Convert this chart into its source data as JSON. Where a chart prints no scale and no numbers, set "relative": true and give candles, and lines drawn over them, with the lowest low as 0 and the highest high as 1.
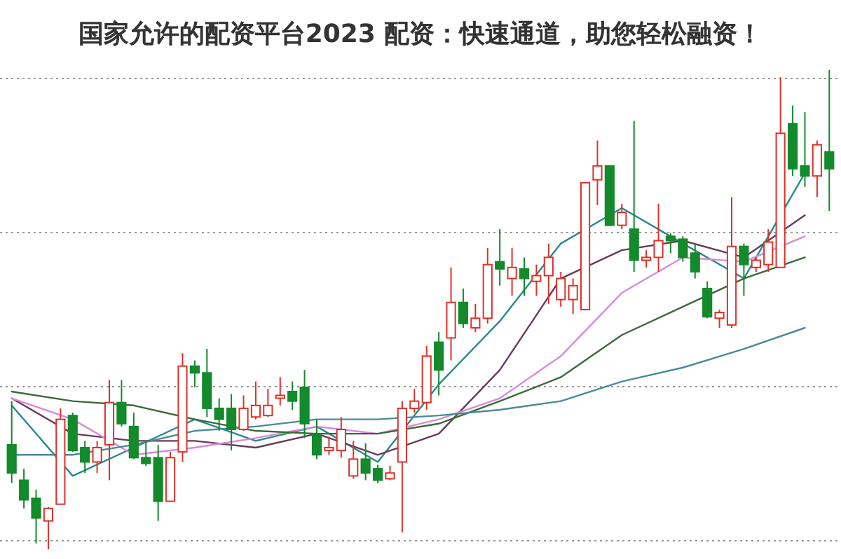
{
  "chart_data": {
    "type": "candlestick",
    "title": "国家允许的配资平台2023 配资：快速通道，助您轻松融资！",
    "relative": true,
    "grid": "y",
    "categories": [
      null,
      null,
      null,
      null,
      null,
      null,
      null,
      null,
      null,
      null,
      null,
      null,
      null,
      null,
      null,
      null,
      null,
      null,
      null,
      null,
      null,
      null,
      null,
      null,
      null,
      null,
      null,
      null,
      null,
      null,
      null,
      null,
      null,
      null,
      null,
      null,
      null,
      null,
      null,
      null,
      null,
      null,
      null,
      null,
      null,
      null,
      null,
      null,
      null,
      null,
      null,
      null,
      null,
      null,
      null,
      null,
      null,
      null,
      null,
      null,
      null,
      null,
      null,
      null,
      null,
      null,
      null,
      null
    ],
    "ohlc": [
      [
        0.218,
        0.309,
        0.138,
        0.159
      ],
      [
        0.144,
        0.168,
        0.085,
        0.103
      ],
      [
        0.106,
        0.124,
        0.012,
        0.065
      ],
      [
        0.059,
        0.088,
        0,
        0.085
      ],
      [
        0.094,
        0.294,
        0.094,
        0.271
      ],
      [
        0.279,
        0.285,
        0.203,
        0.206
      ],
      [
        0.212,
        0.226,
        0.159,
        0.182
      ],
      [
        0.182,
        0.226,
        0.159,
        0.212
      ],
      [
        0.218,
        0.353,
        0.144,
        0.306
      ],
      [
        0.306,
        0.353,
        0.256,
        0.262
      ],
      [
        0.256,
        0.285,
        0.188,
        0.191
      ],
      [
        0.191,
        0.226,
        0.174,
        0.179
      ],
      [
        0.191,
        0.218,
        0.059,
        0.1
      ],
      [
        0.1,
        0.203,
        0.1,
        0.191
      ],
      [
        0.203,
        0.409,
        0.182,
        0.382
      ],
      [
        0.382,
        0.394,
        0.338,
        0.368
      ],
      [
        0.368,
        0.418,
        0.276,
        0.294
      ],
      [
        0.294,
        0.315,
        0.247,
        0.271
      ],
      [
        0.294,
        0.324,
        0.206,
        0.25
      ],
      [
        0.25,
        0.321,
        0.247,
        0.294
      ],
      [
        0.276,
        0.35,
        0.271,
        0.3
      ],
      [
        0.279,
        0.335,
        0.276,
        0.3
      ],
      [
        0.315,
        0.359,
        0.3,
        0.321
      ],
      [
        0.329,
        0.35,
        0.291,
        0.309
      ],
      [
        0.338,
        0.374,
        0.232,
        0.262
      ],
      [
        0.241,
        0.271,
        0.188,
        0.197
      ],
      [
        0.206,
        0.235,
        0.197,
        0.212
      ],
      [
        0.206,
        0.276,
        0.191,
        0.25
      ],
      [
        0.153,
        0.226,
        0.147,
        0.188
      ],
      [
        0.188,
        0.221,
        0.144,
        0.159
      ],
      [
        0.168,
        0.176,
        0.138,
        0.144
      ],
      [
        0.147,
        0.174,
        0.144,
        0.159
      ],
      [
        0.182,
        0.309,
        0.035,
        0.294
      ],
      [
        0.294,
        0.335,
        0.285,
        0.309
      ],
      [
        0.306,
        0.424,
        0.291,
        0.403
      ],
      [
        0.432,
        0.453,
        0.321,
        0.374
      ],
      [
        0.441,
        0.588,
        0.394,
        0.515
      ],
      [
        0.515,
        0.544,
        0.462,
        0.471
      ],
      [
        0.462,
        0.512,
        0.453,
        0.482
      ],
      [
        0.482,
        0.629,
        0.471,
        0.594
      ],
      [
        0.6,
        0.668,
        0.55,
        0.585
      ],
      [
        0.565,
        0.629,
        0.529,
        0.588
      ],
      [
        0.585,
        0.609,
        0.529,
        0.565
      ],
      [
        0.559,
        0.594,
        0.529,
        0.571
      ],
      [
        0.571,
        0.638,
        0.512,
        0.609
      ],
      [
        0.521,
        0.579,
        0.506,
        0.565
      ],
      [
        0.521,
        0.565,
        0.491,
        0.55
      ],
      [
        0.5,
        0.765,
        0.5,
        0.765
      ],
      [
        0.771,
        0.853,
        0.718,
        0.8
      ],
      [
        0.8,
        0.8,
        0.676,
        0.676
      ],
      [
        0.676,
        0.721,
        0.668,
        0.703
      ],
      [
        0.668,
        0.894,
        0.579,
        0.603
      ],
      [
        0.603,
        0.624,
        0.588,
        0.609
      ],
      [
        0.609,
        0.721,
        0.579,
        0.644
      ],
      [
        0.653,
        0.659,
        0.618,
        0.644
      ],
      [
        0.647,
        0.653,
        0.6,
        0.609
      ],
      [
        0.618,
        0.638,
        0.565,
        0.579
      ],
      [
        0.544,
        0.559,
        0.482,
        0.485
      ],
      [
        0.482,
        0.5,
        0.462,
        0.494
      ],
      [
        0.468,
        0.735,
        0.462,
        0.632
      ],
      [
        0.632,
        0.638,
        0.529,
        0.594
      ],
      [
        0.588,
        0.609,
        0.579,
        0.603
      ],
      [
        0.594,
        0.668,
        0.579,
        0.641
      ],
      [
        0.588,
        0.985,
        0.588,
        0.868
      ],
      [
        0.888,
        0.926,
        0.779,
        0.794
      ],
      [
        0.8,
        0.912,
        0.756,
        0.779
      ],
      [
        0.779,
        0.853,
        0.735,
        0.844
      ],
      [
        0.829,
        1,
        0.706,
        0.794
      ]
    ],
    "colors": [
      "#138a2c",
      "#138a2c",
      "#138a2c",
      "#e0302a",
      "#e0302a",
      "#138a2c",
      "#138a2c",
      "#e0302a",
      "#e0302a",
      "#138a2c",
      "#138a2c",
      "#138a2c",
      "#138a2c",
      "#e0302a",
      "#e0302a",
      "#138a2c",
      "#138a2c",
      "#138a2c",
      "#138a2c",
      "#e0302a",
      "#e0302a",
      "#e0302a",
      "#e0302a",
      "#138a2c",
      "#138a2c",
      "#138a2c",
      "#e0302a",
      "#e0302a",
      "#e0302a",
      "#138a2c",
      "#138a2c",
      "#e0302a",
      "#e0302a",
      "#e0302a",
      "#e0302a",
      "#138a2c",
      "#e0302a",
      "#138a2c",
      "#e0302a",
      "#e0302a",
      "#138a2c",
      "#e0302a",
      "#138a2c",
      "#e0302a",
      "#e0302a",
      "#e0302a",
      "#e0302a",
      "#e0302a",
      "#e0302a",
      "#138a2c",
      "#e0302a",
      "#138a2c",
      "#e0302a",
      "#e0302a",
      "#138a2c",
      "#138a2c",
      "#138a2c",
      "#138a2c",
      "#e0302a",
      "#e0302a",
      "#138a2c",
      "#e0302a",
      "#e0302a",
      "#e0302a",
      "#138a2c",
      "#138a2c",
      "#e0302a",
      "#138a2c"
    ],
    "series": [
      {
        "type": "line",
        "color": "#2a8a8a",
        "values": [
          0.3,
          null,
          null,
          null,
          null,
          0.153,
          null,
          null,
          null,
          null,
          0.212,
          null,
          null,
          null,
          null,
          0.271,
          null,
          null,
          null,
          null,
          0.226,
          null,
          null,
          null,
          null,
          0.256,
          null,
          null,
          null,
          null,
          0.182,
          null,
          null,
          null,
          null,
          0.344,
          null,
          null,
          null,
          null,
          0.476,
          null,
          null,
          null,
          null,
          0.638,
          null,
          null,
          null,
          null,
          0.712,
          null,
          null,
          null,
          null,
          0.638,
          null,
          null,
          null,
          null,
          0.565,
          null,
          null,
          null,
          null,
          0.785,
          null,
          null
        ]
      },
      {
        "type": "line",
        "color": "#6b3a5a",
        "values": [
          0.315,
          null,
          null,
          null,
          null,
          0.241,
          null,
          null,
          null,
          null,
          0.226,
          null,
          null,
          null,
          null,
          0.226,
          null,
          null,
          null,
          null,
          0.212,
          null,
          null,
          null,
          null,
          0.241,
          null,
          null,
          null,
          null,
          0.197,
          null,
          null,
          null,
          null,
          0.241,
          null,
          null,
          null,
          null,
          0.374,
          null,
          null,
          null,
          null,
          0.565,
          null,
          null,
          null,
          null,
          0.624,
          null,
          null,
          null,
          null,
          0.644,
          null,
          null,
          null,
          null,
          0.609,
          null,
          null,
          null,
          null,
          0.697,
          null,
          null
        ]
      },
      {
        "type": "line",
        "color": "#d98ad9",
        "values": [
          0.315,
          null,
          null,
          null,
          null,
          0.271,
          null,
          null,
          null,
          null,
          0.197,
          null,
          null,
          null,
          null,
          0.212,
          null,
          null,
          null,
          null,
          0.232,
          null,
          null,
          null,
          null,
          0.256,
          null,
          null,
          null,
          null,
          0.241,
          null,
          null,
          null,
          null,
          0.271,
          null,
          null,
          null,
          null,
          0.315,
          null,
          null,
          null,
          null,
          0.403,
          null,
          null,
          null,
          null,
          0.535,
          null,
          null,
          null,
          null,
          0.609,
          null,
          null,
          null,
          null,
          0.6,
          null,
          null,
          null,
          null,
          0.653,
          null,
          null
        ]
      },
      {
        "type": "line",
        "color": "#3a6a3a",
        "values": [
          0.329,
          null,
          null,
          null,
          null,
          0.309,
          null,
          null,
          null,
          null,
          0.3,
          null,
          null,
          null,
          null,
          0.271,
          null,
          null,
          null,
          null,
          0.247,
          null,
          null,
          null,
          null,
          0.241,
          null,
          null,
          null,
          null,
          0.241,
          null,
          null,
          null,
          null,
          0.262,
          null,
          null,
          null,
          null,
          0.309,
          null,
          null,
          null,
          null,
          0.359,
          null,
          null,
          null,
          null,
          0.447,
          null,
          null,
          null,
          null,
          0.506,
          null,
          null,
          null,
          null,
          0.565,
          null,
          null,
          null,
          null,
          0.609,
          null,
          null
        ]
      },
      {
        "type": "line",
        "color": "#4a8a9a",
        "values": [
          0.197,
          null,
          null,
          null,
          null,
          0.197,
          null,
          null,
          null,
          null,
          0.218,
          null,
          null,
          null,
          null,
          0.247,
          null,
          null,
          null,
          null,
          0.256,
          null,
          null,
          null,
          null,
          0.271,
          null,
          null,
          null,
          null,
          0.271,
          null,
          null,
          null,
          null,
          0.279,
          null,
          null,
          null,
          null,
          0.291,
          null,
          null,
          null,
          null,
          0.309,
          null,
          null,
          null,
          null,
          0.35,
          null,
          null,
          null,
          null,
          0.379,
          null,
          null,
          null,
          null,
          0.418,
          null,
          null,
          null,
          null,
          0.462,
          null,
          null
        ]
      }
    ]
  }
}
